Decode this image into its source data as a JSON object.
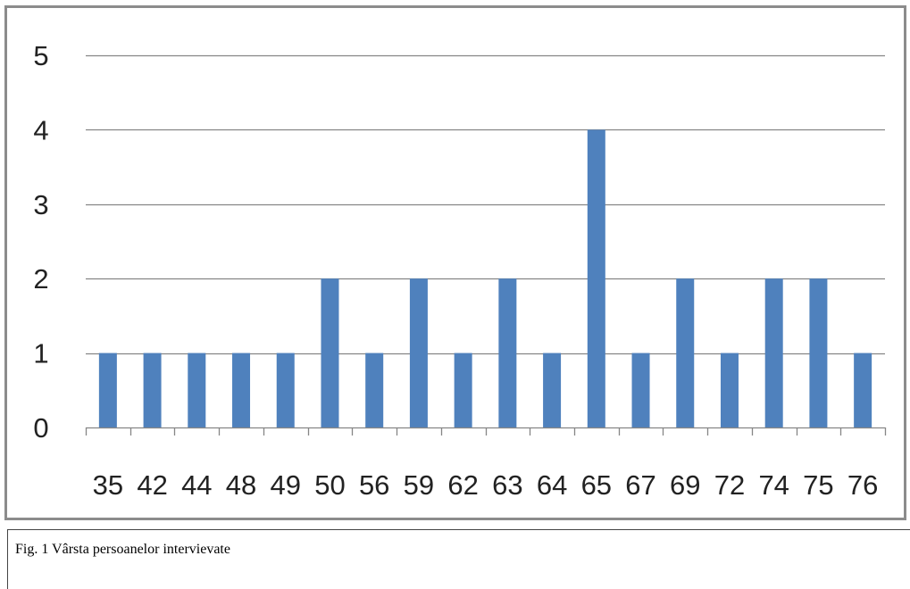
{
  "chart_data": {
    "type": "bar",
    "categories": [
      "35",
      "42",
      "44",
      "48",
      "49",
      "50",
      "56",
      "59",
      "62",
      "63",
      "64",
      "65",
      "67",
      "69",
      "72",
      "74",
      "75",
      "76"
    ],
    "values": [
      1,
      1,
      1,
      1,
      1,
      2,
      1,
      2,
      1,
      2,
      1,
      4,
      1,
      2,
      1,
      2,
      2,
      1
    ],
    "yticks": [
      "0",
      "1",
      "2",
      "3",
      "4",
      "5"
    ],
    "ylim": [
      0,
      5
    ],
    "grid": true,
    "legend": "none",
    "bar_color": "#4f81bd",
    "grid_color": "#868686"
  },
  "caption": {
    "text": "Fig. 1 Vârsta persoanelor intervievate"
  }
}
